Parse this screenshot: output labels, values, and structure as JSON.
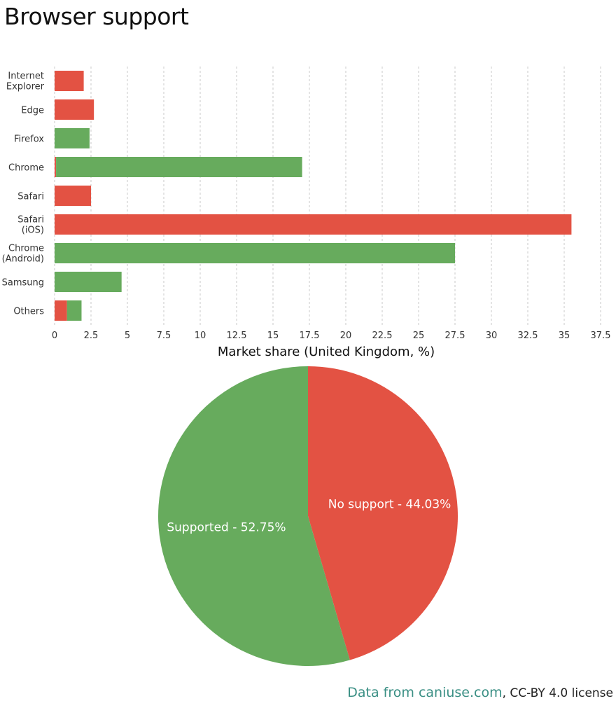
{
  "page": {
    "title": "Browser support",
    "footer_link": "Data from caniuse.com",
    "footer_license": ", CC-BY 4.0 license"
  },
  "colors": {
    "supported": "#67ab5d",
    "no_support": "#e35243",
    "grid": "#c8c8c8",
    "footer_link": "#3a8f84"
  },
  "chart_data": [
    {
      "type": "bar",
      "orientation": "horizontal",
      "stacked": true,
      "categories": [
        "Internet\nExplorer",
        "Edge",
        "Firefox",
        "Chrome",
        "Safari",
        "Safari\n(iOS)",
        "Chrome\n(Android)",
        "Samsung",
        "Others"
      ],
      "series": [
        {
          "key": "no_support",
          "values": [
            2.0,
            2.7,
            0,
            0.1,
            2.5,
            35.5,
            0,
            0,
            0.85
          ]
        },
        {
          "key": "supported",
          "values": [
            0,
            0,
            2.4,
            16.9,
            0,
            0,
            27.5,
            4.6,
            1.0
          ]
        }
      ],
      "xlabel": "Market share (United Kingdom, %)",
      "xlim": [
        0,
        37.5
      ],
      "xticks": [
        0,
        2.5,
        5,
        7.5,
        10,
        12.5,
        15,
        17.5,
        20,
        22.5,
        25,
        27.5,
        30,
        32.5,
        35,
        37.5
      ],
      "grid": "vertical-dashed"
    },
    {
      "type": "pie",
      "slices": [
        {
          "label": "No support - 44.03%",
          "value": 44.03,
          "color_key": "no_support"
        },
        {
          "label": "Supported - 52.75%",
          "value": 52.75,
          "color_key": "supported"
        }
      ]
    }
  ]
}
